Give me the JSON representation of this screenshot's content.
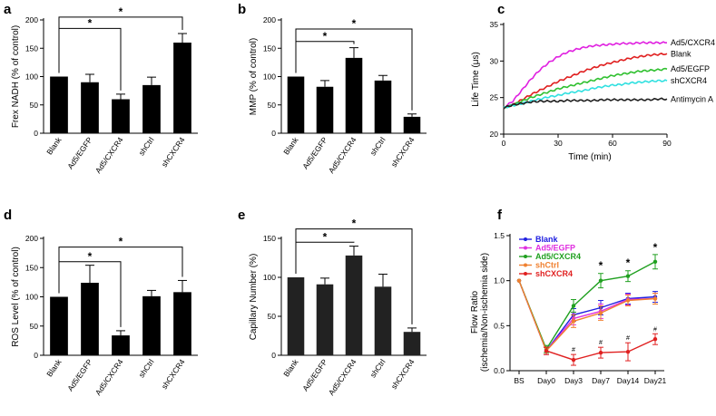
{
  "chart_data": [
    {
      "id": "a",
      "panel": "a",
      "type": "bar",
      "ylabel": "Frex NADH (% of control)",
      "ylim": [
        0,
        200
      ],
      "yticks": [
        0,
        50,
        100,
        150,
        200
      ],
      "categories": [
        "Blank",
        "Ad5/EGFP",
        "Ad5/CXCR4",
        "shCtrl",
        "shCXCR4"
      ],
      "values": [
        100,
        90,
        60,
        85,
        160
      ],
      "errors": [
        0,
        14,
        9,
        14,
        16
      ],
      "bar_color": "#000000",
      "significance": [
        {
          "from": 0,
          "to": 2,
          "label": "*",
          "level": 185
        },
        {
          "from": 0,
          "to": 4,
          "label": "*",
          "level": 205
        }
      ]
    },
    {
      "id": "b",
      "panel": "b",
      "type": "bar",
      "ylabel": "MMP (% of control)",
      "ylim": [
        0,
        200
      ],
      "yticks": [
        0,
        50,
        100,
        150,
        200
      ],
      "categories": [
        "Blank",
        "Ad5/EGFP",
        "Ad5/CXCR4",
        "shCtrl",
        "shCXCR4"
      ],
      "values": [
        100,
        82,
        133,
        93,
        29
      ],
      "errors": [
        0,
        11,
        18,
        9,
        5
      ],
      "bar_color": "#000000",
      "significance": [
        {
          "from": 0,
          "to": 2,
          "label": "*",
          "level": 162
        },
        {
          "from": 0,
          "to": 4,
          "label": "*",
          "level": 184
        }
      ]
    },
    {
      "id": "c",
      "panel": "c",
      "type": "line",
      "xlabel": "Time (min)",
      "ylabel": "Life Time (μs)",
      "xlim": [
        0,
        90
      ],
      "ylim": [
        20,
        35
      ],
      "xticks": [
        0,
        30,
        60,
        90
      ],
      "yticks": [
        20,
        25,
        30,
        35
      ],
      "x": [
        0,
        5,
        10,
        15,
        20,
        25,
        30,
        35,
        40,
        45,
        50,
        55,
        60,
        65,
        70,
        75,
        80,
        85,
        90
      ],
      "series": [
        {
          "name": "Ad5/CXCR4",
          "color": "#e020e0",
          "values": [
            23.6,
            24.5,
            26.0,
            27.5,
            28.8,
            29.8,
            30.6,
            31.2,
            31.6,
            31.9,
            32.1,
            32.2,
            32.3,
            32.4,
            32.4,
            32.5,
            32.5,
            32.5,
            32.5
          ]
        },
        {
          "name": "Blank",
          "color": "#e02020",
          "values": [
            23.6,
            24.0,
            24.7,
            25.4,
            26.0,
            26.6,
            27.2,
            27.7,
            28.2,
            28.7,
            29.1,
            29.5,
            29.8,
            30.1,
            30.4,
            30.6,
            30.8,
            30.9,
            31.0
          ]
        },
        {
          "name": "Ad5/EGFP",
          "color": "#30c030",
          "values": [
            23.6,
            24.0,
            24.5,
            25.0,
            25.4,
            25.8,
            26.2,
            26.5,
            26.8,
            27.1,
            27.4,
            27.7,
            28.0,
            28.2,
            28.4,
            28.6,
            28.7,
            28.8,
            28.9
          ]
        },
        {
          "name": "shCXCR4",
          "color": "#30e0e0",
          "values": [
            23.6,
            23.9,
            24.2,
            24.5,
            24.8,
            25.1,
            25.3,
            25.6,
            25.8,
            26.0,
            26.3,
            26.5,
            26.7,
            26.8,
            27.0,
            27.1,
            27.2,
            27.3,
            27.3
          ]
        },
        {
          "name": "Antimycin A",
          "color": "#202020",
          "values": [
            23.6,
            24.0,
            24.2,
            24.4,
            24.5,
            24.5,
            24.5,
            24.6,
            24.6,
            24.6,
            24.6,
            24.7,
            24.7,
            24.7,
            24.7,
            24.7,
            24.7,
            24.8,
            24.8
          ]
        }
      ]
    },
    {
      "id": "d",
      "panel": "d",
      "type": "bar",
      "ylabel": "ROS Level (% of control)",
      "ylim": [
        0,
        200
      ],
      "yticks": [
        0,
        50,
        100,
        150,
        200
      ],
      "categories": [
        "Blank",
        "Ad5/EGFP",
        "Ad5/CXCR4",
        "shCtrl",
        "shCXCR4"
      ],
      "values": [
        100,
        124,
        34,
        101,
        108
      ],
      "errors": [
        0,
        30,
        8,
        10,
        20
      ],
      "bar_color": "#000000",
      "significance": [
        {
          "from": 0,
          "to": 2,
          "label": "*",
          "level": 160
        },
        {
          "from": 0,
          "to": 4,
          "label": "*",
          "level": 185
        }
      ]
    },
    {
      "id": "e",
      "panel": "e",
      "type": "bar",
      "ylabel": "Capillary Number (%)",
      "ylim": [
        0,
        150
      ],
      "yticks": [
        0,
        50,
        100,
        150
      ],
      "categories": [
        "Blank",
        "Ad5/EGFP",
        "Ad5/CXCR4",
        "shCtrl",
        "shCXCR4"
      ],
      "values": [
        100,
        91,
        128,
        88,
        30
      ],
      "errors": [
        0,
        8,
        12,
        16,
        5
      ],
      "bar_color": "#222222",
      "significance": [
        {
          "from": 0,
          "to": 2,
          "label": "*",
          "level": 145
        },
        {
          "from": 0,
          "to": 4,
          "label": "*",
          "level": 162
        }
      ]
    },
    {
      "id": "f",
      "panel": "f",
      "type": "line",
      "ylabel": "Flow Ratio",
      "ylabel2": "(ischemia/Non-ischemia side)",
      "ylim": [
        0,
        1.5
      ],
      "yticks": [
        0.0,
        0.5,
        1.0,
        1.5
      ],
      "categories": [
        "BS",
        "Day0",
        "Day3",
        "Day7",
        "Day14",
        "Day21"
      ],
      "legend_position": "top-left",
      "series": [
        {
          "name": "Blank",
          "color": "#2020e0",
          "values": [
            1.0,
            0.22,
            0.62,
            0.7,
            0.8,
            0.82
          ],
          "errors": [
            0,
            0.04,
            0.07,
            0.08,
            0.06,
            0.06
          ],
          "start": 0
        },
        {
          "name": "Ad5/EGFP",
          "color": "#e030e0",
          "values": [
            1.0,
            0.22,
            0.58,
            0.66,
            0.79,
            0.8
          ],
          "errors": [
            0,
            0.04,
            0.07,
            0.08,
            0.06,
            0.06
          ],
          "start": 0
        },
        {
          "name": "Ad5/CXCR4",
          "color": "#20a020",
          "values": [
            1.0,
            0.24,
            0.72,
            1.0,
            1.05,
            1.21
          ],
          "errors": [
            0,
            0.04,
            0.07,
            0.08,
            0.06,
            0.08
          ],
          "start": 0
        },
        {
          "name": "shCtrl",
          "color": "#f08030",
          "values": [
            1.0,
            0.22,
            0.55,
            0.64,
            0.78,
            0.8
          ],
          "errors": [
            0,
            0.04,
            0.07,
            0.08,
            0.06,
            0.06
          ],
          "start": 0
        },
        {
          "name": "shCXCR4",
          "color": "#e02020",
          "values": [
            null,
            0.22,
            0.12,
            0.2,
            0.21,
            0.35
          ],
          "errors": [
            0,
            0.04,
            0.06,
            0.06,
            0.1,
            0.06
          ],
          "start": 1
        }
      ],
      "annotations": [
        {
          "label": "*",
          "category": 3,
          "value": 1.13
        },
        {
          "label": "*",
          "category": 4,
          "value": 1.16
        },
        {
          "label": "*",
          "category": 5,
          "value": 1.33
        },
        {
          "label": "#",
          "category": 2,
          "value": 0.21
        },
        {
          "label": "#",
          "category": 3,
          "value": 0.29
        },
        {
          "label": "#",
          "category": 4,
          "value": 0.34
        },
        {
          "label": "#",
          "category": 5,
          "value": 0.44
        }
      ]
    }
  ]
}
